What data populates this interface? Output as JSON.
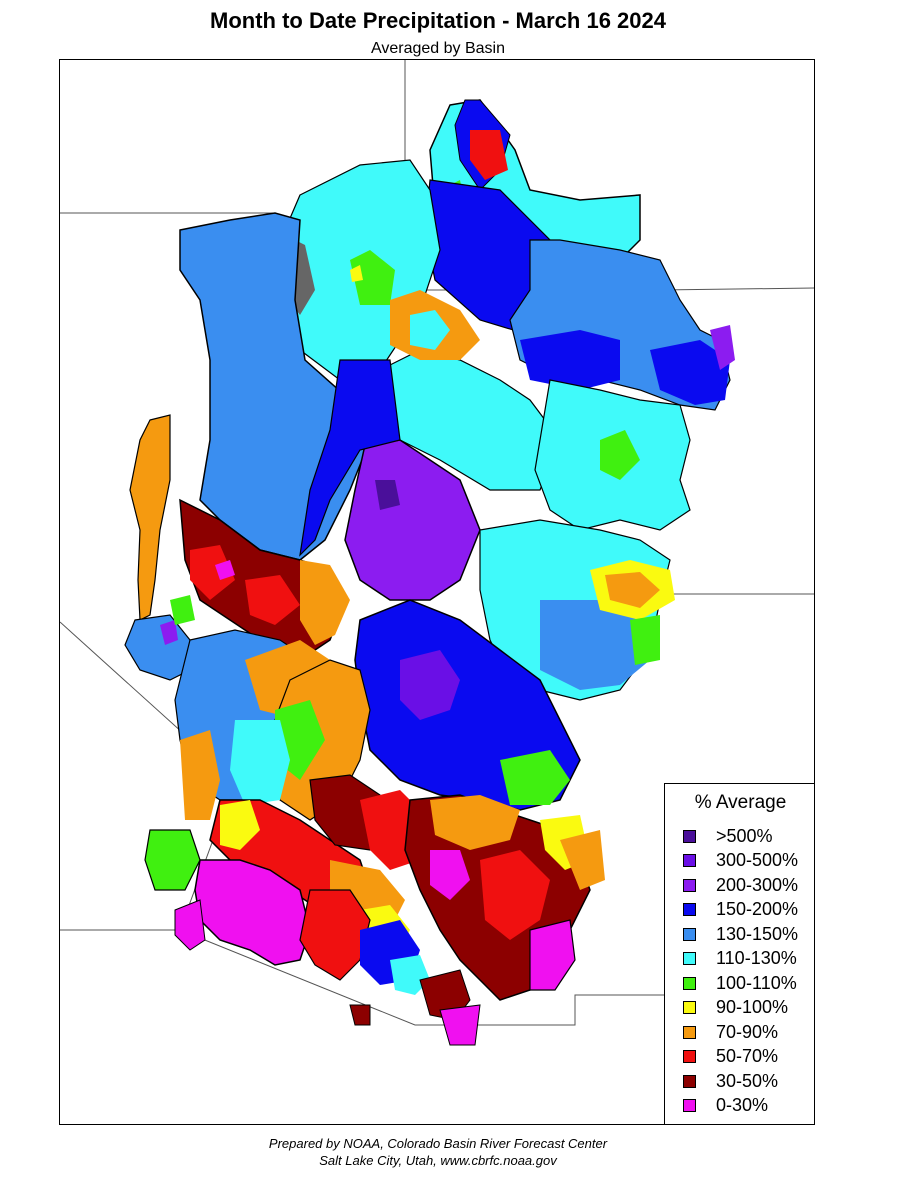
{
  "title": "Month to Date Precipitation - March 16 2024",
  "subtitle": "Averaged by Basin",
  "legend": {
    "title": "% Average",
    "items": [
      {
        "label": ">500%",
        "color": "#4a0f9a"
      },
      {
        "label": "300-500%",
        "color": "#6a0fe6"
      },
      {
        "label": "200-300%",
        "color": "#8c1cf0"
      },
      {
        "label": "150-200%",
        "color": "#0a0af0"
      },
      {
        "label": "130-150%",
        "color": "#3a8ef0"
      },
      {
        "label": "110-130%",
        "color": "#40fafa"
      },
      {
        "label": "100-110%",
        "color": "#40f010"
      },
      {
        "label": "90-100%",
        "color": "#fafa10"
      },
      {
        "label": "70-90%",
        "color": "#f59a10"
      },
      {
        "label": "50-70%",
        "color": "#f01010"
      },
      {
        "label": "30-50%",
        "color": "#8c0000"
      },
      {
        "label": "0-30%",
        "color": "#f010f0"
      }
    ]
  },
  "credit": {
    "line1": "Prepared by NOAA, Colorado Basin River Forecast Center",
    "line2": "Salt Lake City, Utah, www.cbrfc.noaa.gov"
  }
}
